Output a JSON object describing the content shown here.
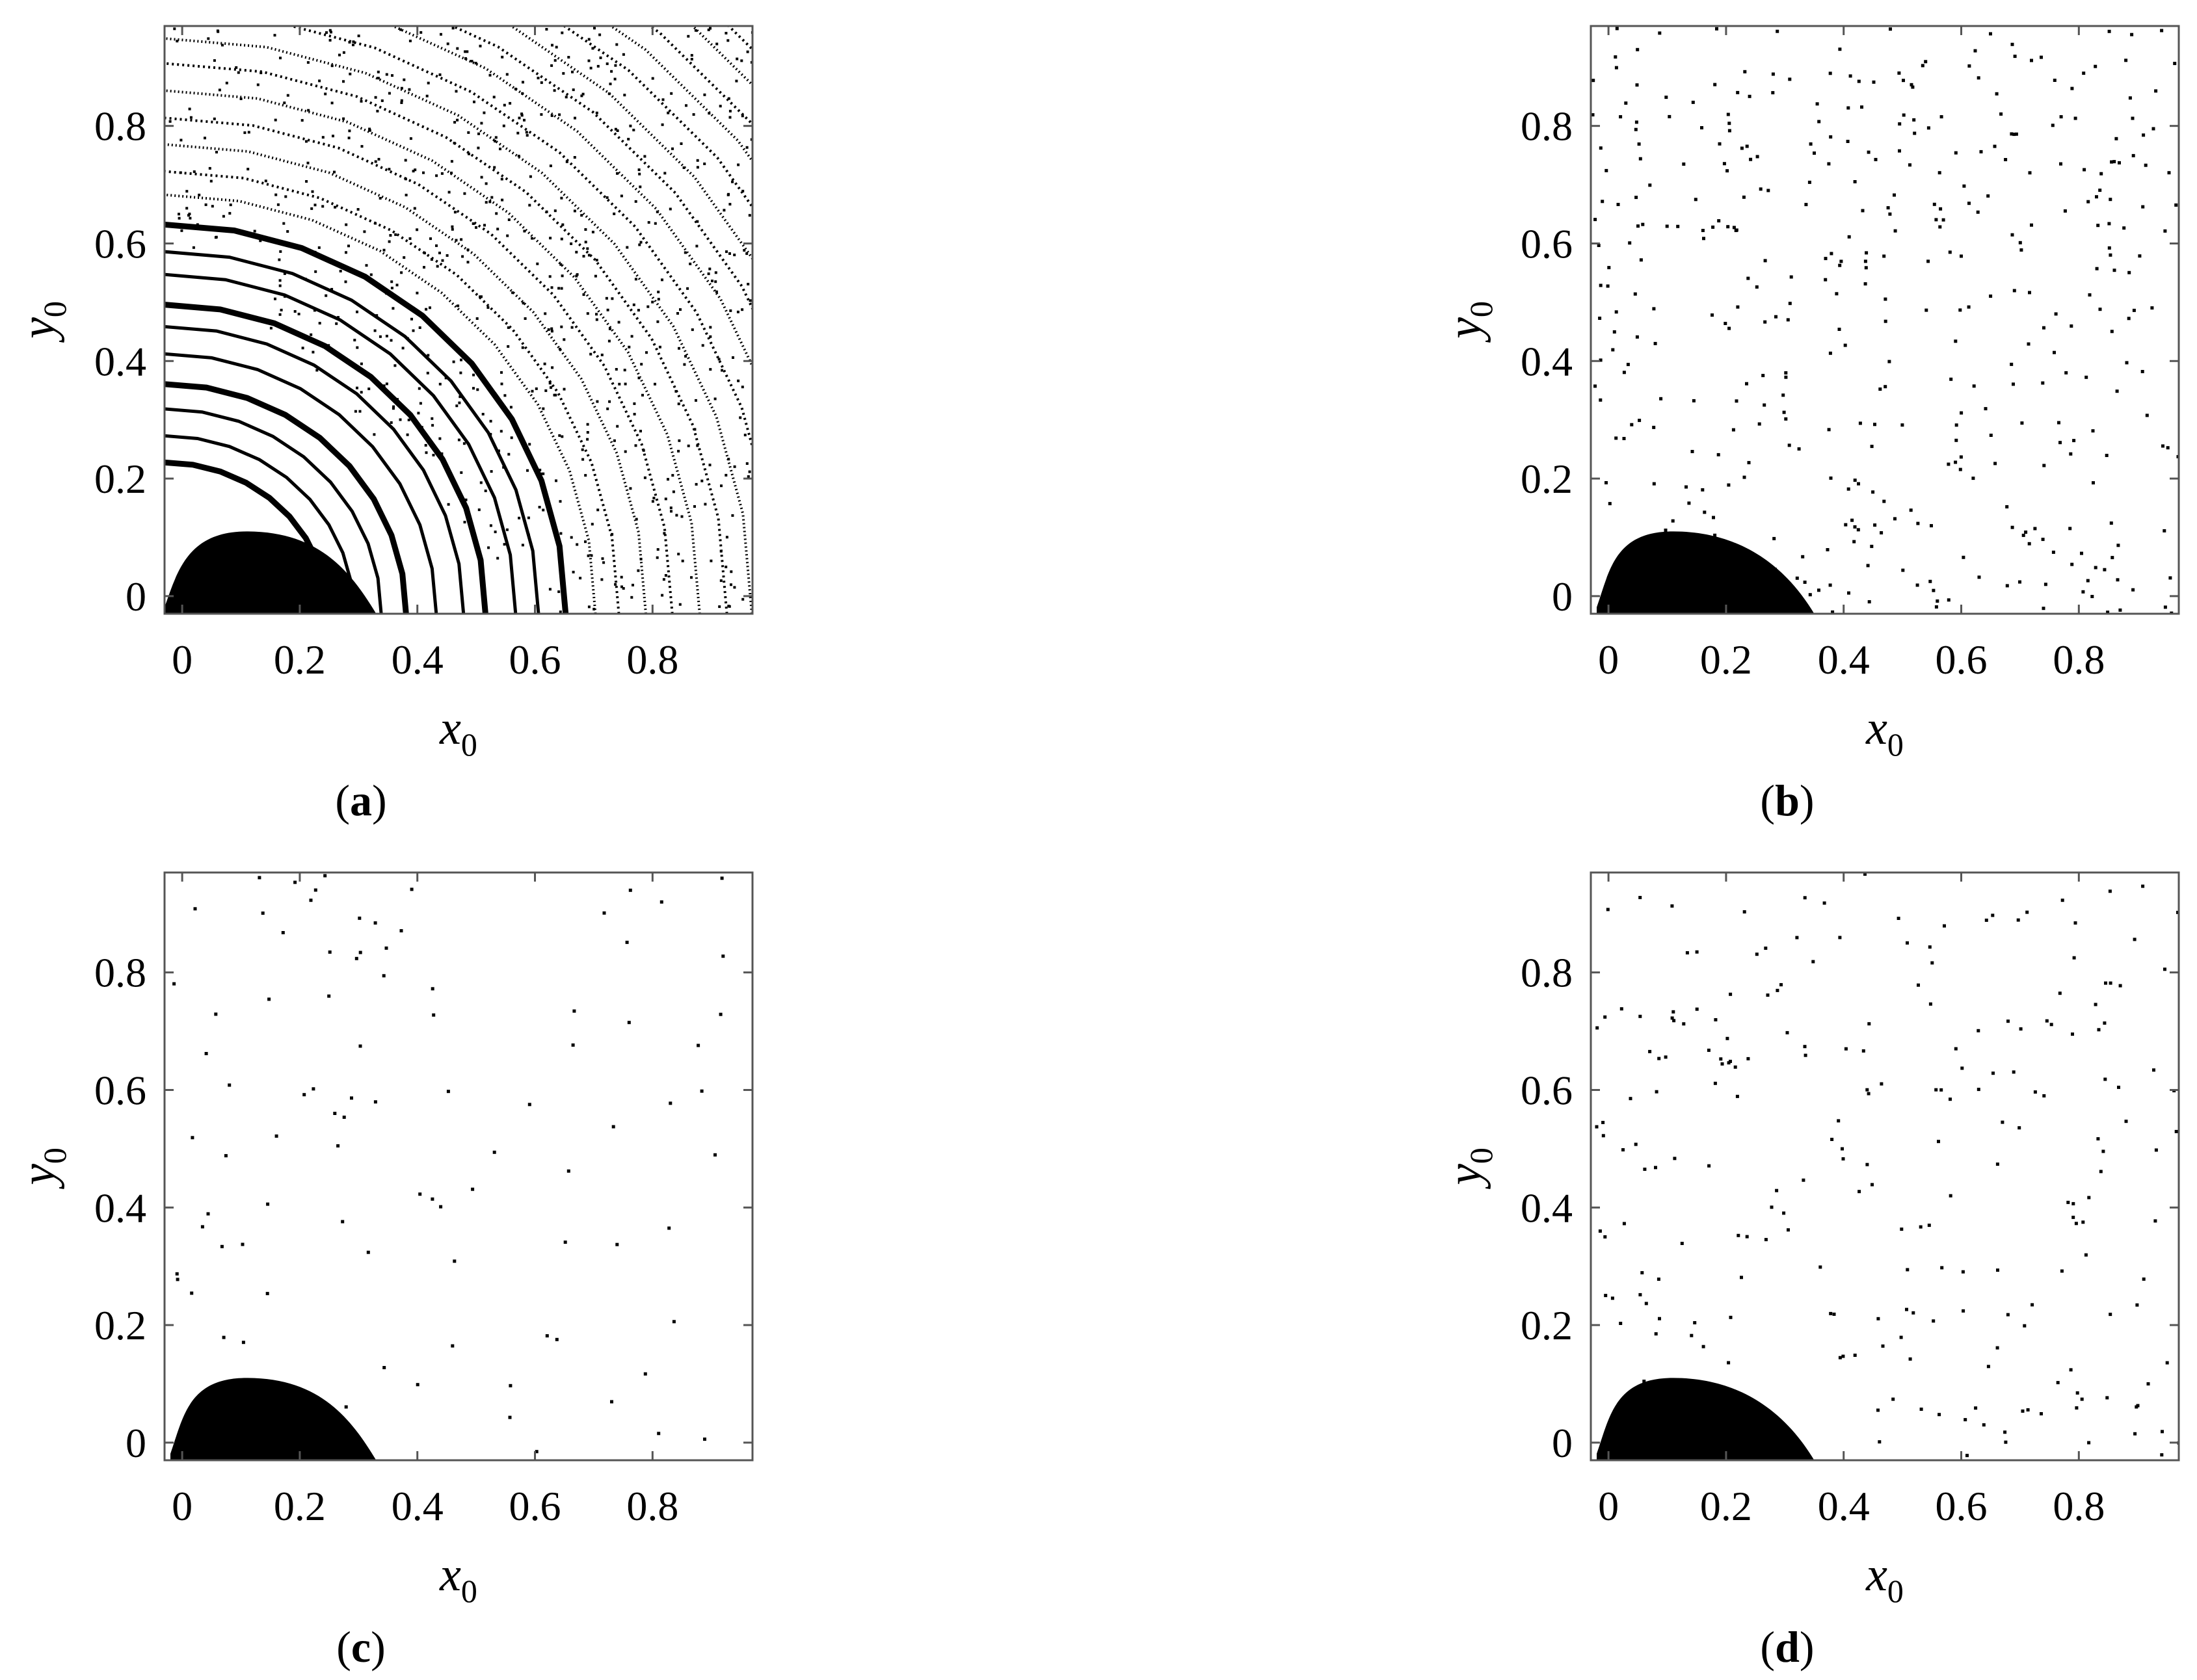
{
  "chart_data": [
    {
      "type": "scatter",
      "panel_label": "a",
      "xlabel": "x",
      "xlabel_sub": "0",
      "ylabel": "y",
      "ylabel_sub": "0",
      "xlim": [
        -0.03,
        0.97
      ],
      "ylim": [
        -0.03,
        0.97
      ],
      "xticks": [
        "0",
        "0.2",
        "0.4",
        "0.6",
        "0.8"
      ],
      "yticks": [
        "0",
        "0.2",
        "0.4",
        "0.6",
        "0.8"
      ],
      "basin": {
        "center_x": 0.11,
        "top_y": 0.11,
        "left_x": -0.03,
        "right_x": 0.33
      },
      "pattern": "concentric-arcs",
      "arcs": {
        "start_x": 0.25,
        "spacing": 0.045,
        "count": 28
      },
      "dot_seed": 11
    },
    {
      "type": "scatter",
      "panel_label": "b",
      "xlabel": "x",
      "xlabel_sub": "0",
      "ylabel": "y",
      "ylabel_sub": "0",
      "xlim": [
        -0.03,
        0.97
      ],
      "ylim": [
        -0.03,
        0.97
      ],
      "xticks": [
        "0",
        "0.2",
        "0.4",
        "0.6",
        "0.8"
      ],
      "yticks": [
        "0",
        "0.2",
        "0.4",
        "0.6",
        "0.8"
      ],
      "basin": {
        "center_x": 0.11,
        "top_y": 0.11,
        "left_x": -0.02,
        "right_x": 0.35
      },
      "pattern": "sparse-dots",
      "dot_count": 420,
      "dot_seed": 23
    },
    {
      "type": "scatter",
      "panel_label": "c",
      "xlabel": "x",
      "xlabel_sub": "0",
      "ylabel": "y",
      "ylabel_sub": "0",
      "xlim": [
        -0.03,
        0.97
      ],
      "ylim": [
        -0.03,
        0.97
      ],
      "xticks": [
        "0",
        "0.2",
        "0.4",
        "0.6",
        "0.8"
      ],
      "yticks": [
        "0",
        "0.2",
        "0.4",
        "0.6",
        "0.8"
      ],
      "basin": {
        "center_x": 0.11,
        "top_y": 0.11,
        "left_x": -0.02,
        "right_x": 0.33
      },
      "pattern": "sparse-dots",
      "dot_count": 95,
      "dot_seed": 37
    },
    {
      "type": "scatter",
      "panel_label": "d",
      "xlabel": "x",
      "xlabel_sub": "0",
      "ylabel": "y",
      "ylabel_sub": "0",
      "xlim": [
        -0.03,
        0.97
      ],
      "ylim": [
        -0.03,
        0.97
      ],
      "xticks": [
        "0",
        "0.2",
        "0.4",
        "0.6",
        "0.8"
      ],
      "yticks": [
        "0",
        "0.2",
        "0.4",
        "0.6",
        "0.8"
      ],
      "basin": {
        "center_x": 0.11,
        "top_y": 0.11,
        "left_x": -0.02,
        "right_x": 0.35
      },
      "pattern": "sparse-dots",
      "dot_count": 230,
      "dot_seed": 53
    }
  ]
}
